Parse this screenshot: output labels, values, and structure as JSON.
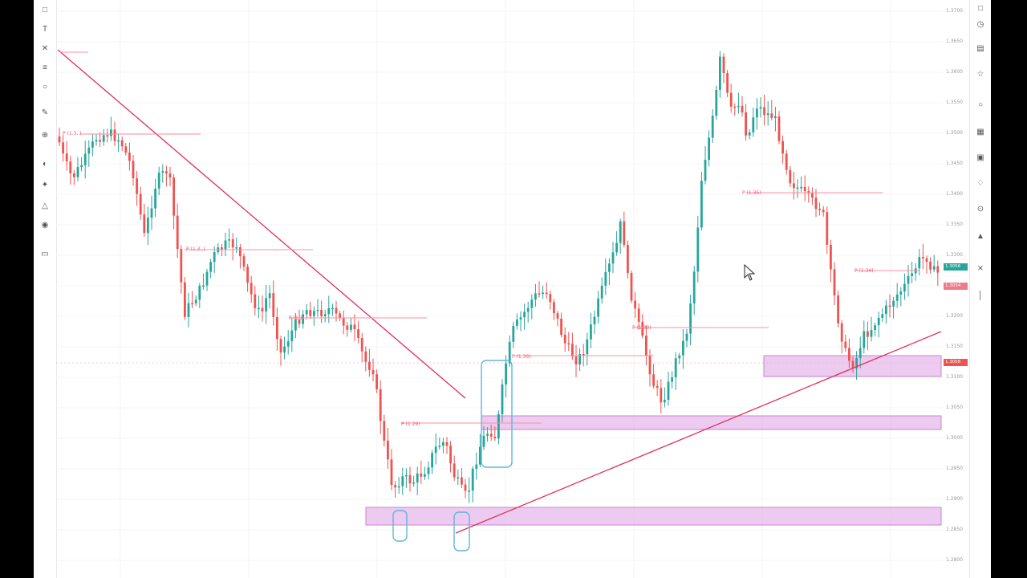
{
  "app": {
    "name": "Trading chart"
  },
  "colors": {
    "up": "#26a69a",
    "down": "#ef5350",
    "zone_fill": "#e7b8ea",
    "zone_border": "#c885cf",
    "trendline": "#e0305e",
    "box": "#5fb6de",
    "marker_line": "#ff8fa3"
  },
  "left_toolbar": {
    "icons": [
      "cursor-icon",
      "text-icon",
      "cross-icon",
      "lines-icon",
      "circle-icon",
      "pencil-icon",
      "zoom-icon",
      "magnet-icon",
      "brush-icon",
      "lock-icon",
      "eye-icon",
      "trash-icon"
    ]
  },
  "right_toolbar": {
    "icons": [
      "watchlist-icon",
      "clock-icon",
      "data-window-icon",
      "idea-icon",
      "chat-icon",
      "calendar-icon",
      "news-icon",
      "hotlist-icon",
      "streams-icon",
      "alert-icon",
      "screener-icon",
      "tree-icon"
    ]
  },
  "price_scale": {
    "ticks": [
      "1.3700",
      "1.3650",
      "1.3600",
      "1.3550",
      "1.3500",
      "1.3450",
      "1.3400",
      "1.3350",
      "1.3300",
      "1.3250",
      "1.3200",
      "1.3150",
      "1.3100",
      "1.3050",
      "1.3000",
      "1.2950",
      "1.2900",
      "1.2850",
      "1.2800"
    ],
    "current_price": "1.3058",
    "current_price_alt": "1.3056",
    "marker_price": "1.3034"
  },
  "markers": [
    {
      "label": "P (1.3..)"
    },
    {
      "label": "P (1.3..)"
    },
    {
      "label": "P (1.3..)"
    },
    {
      "label": "P (1.29)"
    },
    {
      "label": "P (1.35)"
    },
    {
      "label": "P (1.36)"
    },
    {
      "label": "P (1.34)"
    },
    {
      "label": "P (1.30)"
    }
  ]
}
